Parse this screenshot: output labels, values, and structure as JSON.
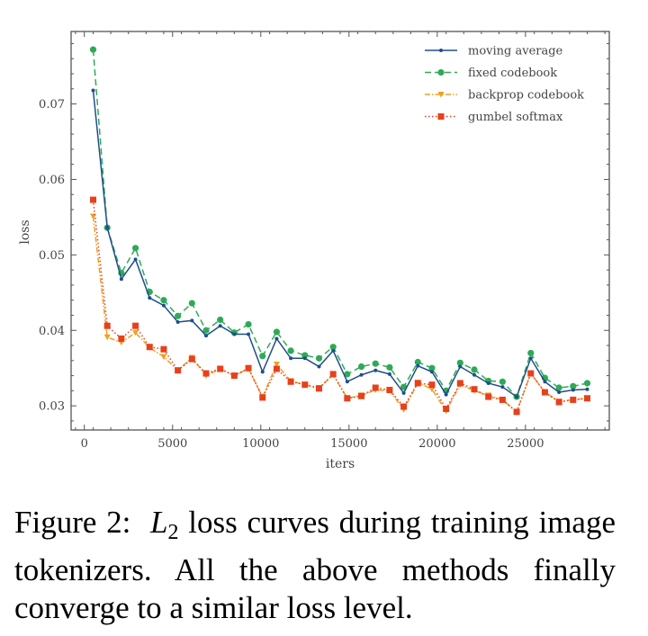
{
  "chart_data": {
    "type": "line",
    "xlabel": "iters",
    "ylabel": "loss",
    "xlim": [
      -750,
      29750
    ],
    "ylim": [
      0.0268,
      0.0796
    ],
    "xticks": [
      0,
      5000,
      10000,
      15000,
      20000,
      25000
    ],
    "xtick_labels": [
      "0",
      "5000",
      "10000",
      "15000",
      "20000",
      "25000"
    ],
    "yticks": [
      0.03,
      0.04,
      0.05,
      0.06,
      0.07
    ],
    "ytick_labels": [
      "0.03",
      "0.04",
      "0.05",
      "0.06",
      "0.07"
    ],
    "grid": false,
    "legend_position": "top-right",
    "x": [
      500,
      1300,
      2100,
      2900,
      3700,
      4500,
      5300,
      6100,
      6900,
      7700,
      8500,
      9300,
      10100,
      10900,
      11700,
      12500,
      13300,
      14100,
      14900,
      15700,
      16500,
      17300,
      18100,
      18900,
      19700,
      20500,
      21300,
      22100,
      22900,
      23700,
      24500,
      25300,
      26100,
      26900,
      27700,
      28500
    ],
    "series": [
      {
        "name": "moving average",
        "color": "#1f4e8c",
        "marker": "dot",
        "dash": "solid",
        "values": [
          0.0718,
          0.0536,
          0.0468,
          0.0494,
          0.0443,
          0.0433,
          0.0411,
          0.0413,
          0.0393,
          0.0406,
          0.0395,
          0.0395,
          0.0345,
          0.0389,
          0.0363,
          0.0363,
          0.0352,
          0.0373,
          0.0332,
          0.0341,
          0.0347,
          0.0342,
          0.0317,
          0.0353,
          0.0345,
          0.0315,
          0.0352,
          0.0341,
          0.033,
          0.0325,
          0.0312,
          0.0363,
          0.0332,
          0.0318,
          0.0321,
          0.0322
        ]
      },
      {
        "name": "fixed codebook",
        "color": "#2eaa57",
        "marker": "circle",
        "dash": "dashed",
        "values": [
          0.0772,
          0.0536,
          0.0476,
          0.0509,
          0.0451,
          0.044,
          0.0419,
          0.0436,
          0.04,
          0.0414,
          0.0397,
          0.0408,
          0.0366,
          0.0398,
          0.0373,
          0.0367,
          0.0363,
          0.0378,
          0.0342,
          0.0352,
          0.0356,
          0.0351,
          0.0325,
          0.0358,
          0.035,
          0.032,
          0.0357,
          0.0348,
          0.0333,
          0.0332,
          0.0312,
          0.037,
          0.0337,
          0.0324,
          0.0326,
          0.033
        ]
      },
      {
        "name": "backprop codebook",
        "color": "#f0a020",
        "marker": "triangle-down",
        "dash": "dashdot",
        "values": [
          0.0551,
          0.0391,
          0.0384,
          0.0397,
          0.0377,
          0.0365,
          0.0347,
          0.0364,
          0.034,
          0.0349,
          0.034,
          0.0349,
          0.0312,
          0.0355,
          0.0333,
          0.0328,
          0.0324,
          0.0341,
          0.031,
          0.0314,
          0.0321,
          0.032,
          0.0295,
          0.0331,
          0.0322,
          0.0293,
          0.0328,
          0.032,
          0.0314,
          0.0308,
          0.0292,
          0.0343,
          0.0318,
          0.0306,
          0.0308,
          0.031
        ]
      },
      {
        "name": "gumbel softmax",
        "color": "#e8401c",
        "marker": "square",
        "dash": "dotted",
        "values": [
          0.0573,
          0.0406,
          0.0389,
          0.0406,
          0.0378,
          0.0375,
          0.0347,
          0.0362,
          0.0343,
          0.0349,
          0.034,
          0.035,
          0.0311,
          0.0349,
          0.0332,
          0.0328,
          0.0323,
          0.0342,
          0.031,
          0.0313,
          0.0324,
          0.0321,
          0.0299,
          0.033,
          0.0328,
          0.0296,
          0.033,
          0.0322,
          0.0312,
          0.0308,
          0.0292,
          0.0343,
          0.0318,
          0.0305,
          0.0308,
          0.031
        ]
      }
    ]
  },
  "caption": {
    "prefix": "Figure 2:  ",
    "math_var": "L",
    "math_sub": "2",
    "text": " loss curves during training image tokenizers. All the above methods finally converge to a similar loss level."
  }
}
